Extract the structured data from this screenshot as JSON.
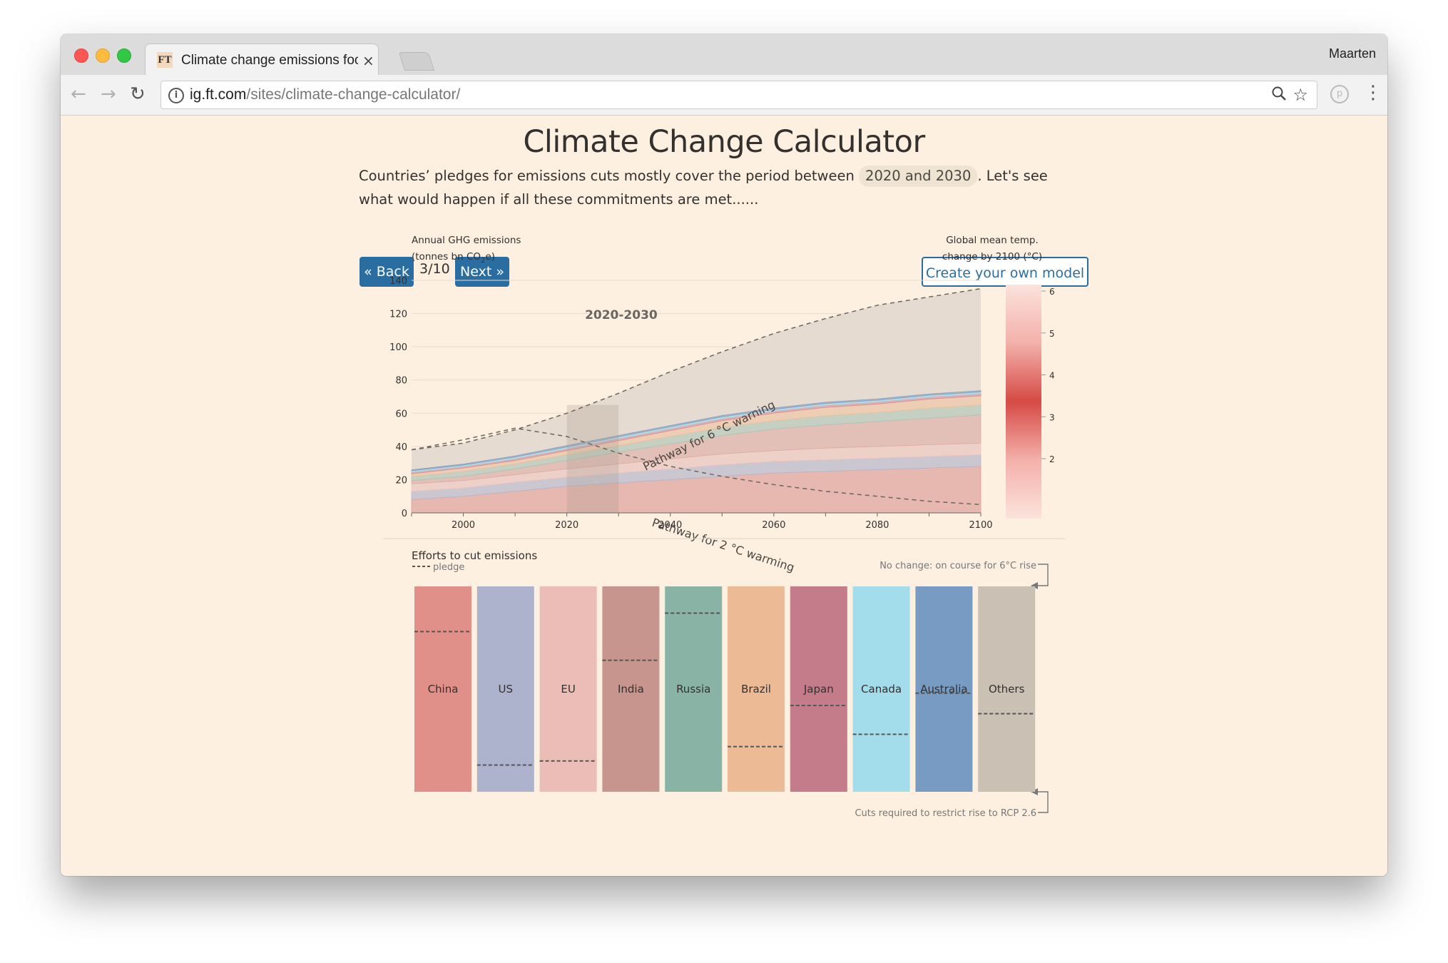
{
  "browser": {
    "tab_title": "Climate change emissions foot",
    "tab_favicon": "FT",
    "tab_close": "×",
    "profile_name": "Maarten",
    "url_host": "ig.ft.com",
    "url_path": "/sites/climate-change-calculator/",
    "icons": [
      "back-arrow-icon",
      "forward-arrow-icon",
      "reload-icon",
      "info-icon",
      "zoom-icon",
      "star-icon",
      "extension-icon",
      "menu-icon"
    ]
  },
  "page": {
    "title": "Climate Change Calculator",
    "intro_before": "Countries’ pledges for emissions cuts mostly cover the period between ",
    "intro_period": "2020 and 2030",
    "intro_after": ". Let's see what would happen if all these commitments are met......",
    "back_label": "« Back",
    "step": "3/10",
    "next_label": "Next »",
    "create_label": "Create your own model"
  },
  "colors": {
    "background": "#fdf0e0",
    "button_blue": "#2a6ea1",
    "highlight_band": "#a89a8f"
  },
  "chart_data": [
    {
      "type": "area",
      "ylabel_line1": "Annual GHG emissions",
      "ylabel_line2_prefix": "(tonnes bn CO",
      "ylabel_line2_sub": "2",
      "ylabel_line2_suffix": "e)",
      "highlight_label": "2020-2030",
      "highlight_range": [
        2020,
        2030
      ],
      "xlim": [
        1990,
        2100
      ],
      "ylim": [
        0,
        140
      ],
      "x_ticks": [
        2000,
        2020,
        2040,
        2060,
        2080,
        2100
      ],
      "y_ticks": [
        0,
        20,
        40,
        60,
        80,
        100,
        120,
        140
      ],
      "x": [
        1990,
        2000,
        2010,
        2020,
        2030,
        2040,
        2050,
        2060,
        2070,
        2080,
        2090,
        2100
      ],
      "pathways": [
        {
          "name": "Pathway for 6 °C warning",
          "values": [
            38,
            42,
            50,
            60,
            72,
            85,
            97,
            108,
            117,
            125,
            130,
            135
          ]
        },
        {
          "name": "Pathway for 2 °C warming",
          "values": [
            38,
            44,
            51,
            46,
            36,
            28,
            22,
            17,
            13,
            10,
            7,
            5
          ]
        }
      ],
      "series": [
        {
          "name": "China",
          "color": "#e79a93",
          "values": [
            8,
            10,
            13,
            16,
            18,
            20,
            22,
            24,
            25,
            26,
            27,
            28
          ]
        },
        {
          "name": "US",
          "color": "#b4b6cf",
          "values": [
            5,
            5,
            5.5,
            5.5,
            6,
            6.5,
            7,
            7,
            7,
            7,
            7,
            7
          ]
        },
        {
          "name": "EU",
          "color": "#f2c6c0",
          "values": [
            4.5,
            4.5,
            4.5,
            5,
            5.5,
            6,
            6.5,
            6.5,
            7,
            7,
            7,
            7
          ]
        },
        {
          "name": "India",
          "color": "#deaaa2",
          "values": [
            2,
            2.5,
            3.5,
            5,
            7,
            9,
            11,
            13,
            14,
            15,
            16,
            17
          ]
        },
        {
          "name": "Russia",
          "color": "#aac6b7",
          "values": [
            2.5,
            3,
            3,
            3.5,
            4,
            4.5,
            5,
            5,
            5.5,
            5.5,
            6,
            6
          ]
        },
        {
          "name": "Brazil",
          "color": "#f2c19b",
          "values": [
            1.5,
            2,
            2,
            2.5,
            3,
            3.5,
            4,
            4.5,
            5,
            5,
            5.5,
            5.5
          ]
        },
        {
          "name": "Japan",
          "color": "#d48b98",
          "values": [
            1,
            1,
            1.2,
            1.2,
            1.3,
            1.3,
            1.3,
            1.3,
            1.3,
            1.3,
            1.3,
            1.3
          ]
        },
        {
          "name": "Canada",
          "color": "#a5dbea",
          "values": [
            0.8,
            0.8,
            0.9,
            1,
            1,
            1,
            1,
            1,
            1,
            1,
            1,
            1
          ]
        },
        {
          "name": "Australia",
          "color": "#7c9ec4",
          "values": [
            0.6,
            0.6,
            0.7,
            0.8,
            0.8,
            0.8,
            0.8,
            0.8,
            0.8,
            0.8,
            0.8,
            0.8
          ]
        }
      ]
    },
    {
      "type": "heatmap",
      "title_line1": "Global mean temp.",
      "title_line2": "change by 2100 (°C)",
      "range": [
        2,
        6
      ],
      "ticks": [
        6,
        5,
        4,
        3,
        2
      ],
      "colors": [
        "#fbe3dc",
        "#f4b0aa",
        "#d64a45",
        "#f4b0aa",
        "#fbe3dc"
      ]
    },
    {
      "type": "bar",
      "title": "Efforts to cut emissions",
      "legend_label": "pledge",
      "top_label": "No change: on course for 6°C rise",
      "bottom_label": "Cuts required to restrict rise to RCP 2.6",
      "categories": [
        "China",
        "US",
        "EU",
        "India",
        "Russia",
        "Brazil",
        "Japan",
        "Canada",
        "Australia",
        "Others"
      ],
      "colors": [
        "#e09089",
        "#adb3cc",
        "#ecbdb6",
        "#c7958e",
        "#88b3a5",
        "#ecbb96",
        "#c47b8a",
        "#a3dcea",
        "#779bc2",
        "#cbc0b4"
      ],
      "pledge": [
        0.22,
        0.87,
        0.85,
        0.36,
        0.13,
        0.78,
        0.58,
        0.72,
        0.52,
        0.62
      ]
    }
  ]
}
